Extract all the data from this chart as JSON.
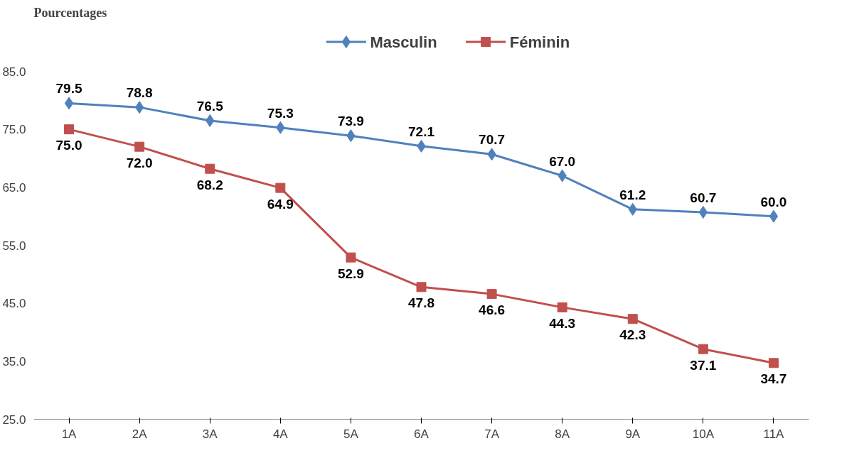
{
  "chart_data": {
    "type": "line",
    "title": "Pourcentages",
    "categories": [
      "1A",
      "2A",
      "3A",
      "4A",
      "5A",
      "6A",
      "7A",
      "8A",
      "9A",
      "10A",
      "11A"
    ],
    "series": [
      {
        "name": "Masculin",
        "color": "#4f81bd",
        "marker": "diamond",
        "values": [
          79.5,
          78.8,
          76.5,
          75.3,
          73.9,
          72.1,
          70.7,
          67.0,
          61.2,
          60.7,
          60.0
        ],
        "value_labels": [
          "79.5",
          "78.8",
          "76.5",
          "75.3",
          "73.9",
          "72.1",
          "70.7",
          "67.0",
          "61.2",
          "60.7",
          "60.0"
        ]
      },
      {
        "name": "Féminin",
        "color": "#c0504d",
        "marker": "square",
        "values": [
          75.0,
          72.0,
          68.2,
          64.9,
          52.9,
          47.8,
          46.6,
          44.3,
          42.3,
          37.1,
          34.7
        ],
        "value_labels": [
          "75.0",
          "72.0",
          "68.2",
          "64.9",
          "52.9",
          "47.8",
          "46.6",
          "44.3",
          "42.3",
          "37.1",
          "34.7"
        ]
      }
    ],
    "ylim": [
      25,
      85
    ],
    "yticks": [
      {
        "value": 25,
        "label": "25.0"
      },
      {
        "value": 35,
        "label": "35.0"
      },
      {
        "value": 45,
        "label": "45.0"
      },
      {
        "value": 55,
        "label": "55.0"
      },
      {
        "value": 65,
        "label": "65.0"
      },
      {
        "value": 75,
        "label": "75.0"
      },
      {
        "value": 85,
        "label": "85.0"
      }
    ],
    "grid": false,
    "legend": "top",
    "line_style": "solid"
  }
}
